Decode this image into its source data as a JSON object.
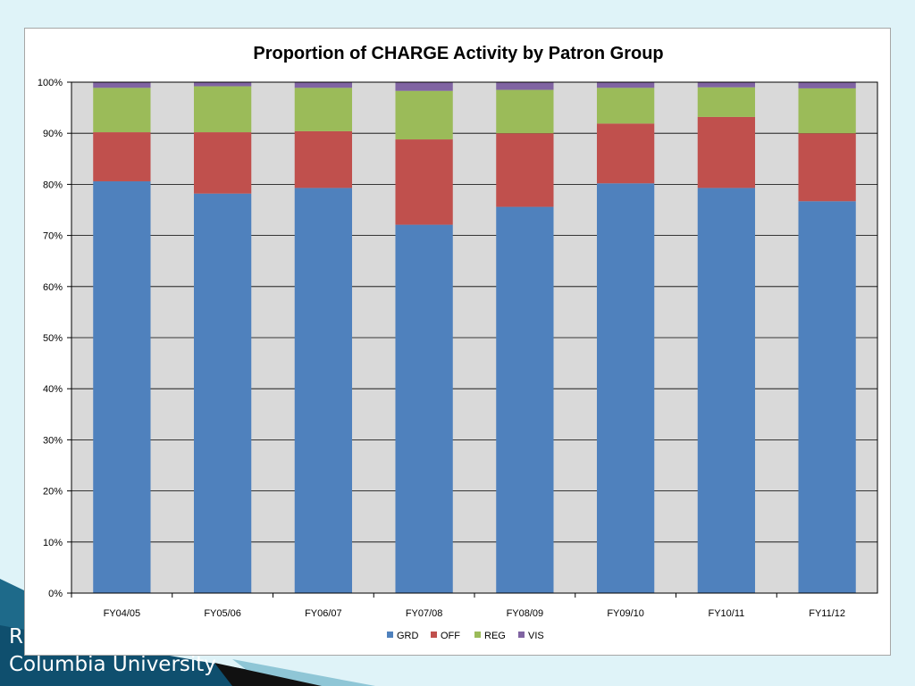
{
  "slide": {
    "footer_line1": "R",
    "footer_line2": "Columbia University"
  },
  "chart_data": {
    "type": "bar",
    "stacked": true,
    "percent": true,
    "title": "Proportion of CHARGE Activity by Patron Group",
    "xlabel": "",
    "ylabel": "",
    "ylim": [
      0,
      100
    ],
    "yticks": [
      "0%",
      "10%",
      "20%",
      "30%",
      "40%",
      "50%",
      "60%",
      "70%",
      "80%",
      "90%",
      "100%"
    ],
    "grid": true,
    "legend_position": "bottom",
    "categories": [
      "FY04/05",
      "FY05/06",
      "FY06/07",
      "FY07/08",
      "FY08/09",
      "FY09/10",
      "FY10/11",
      "FY11/12"
    ],
    "series": [
      {
        "name": "GRD",
        "color": "#4f81bd",
        "values": [
          80.6,
          78.2,
          79.3,
          72.1,
          75.6,
          80.2,
          79.3,
          76.7
        ]
      },
      {
        "name": "OFF",
        "color": "#c0504d",
        "values": [
          9.6,
          12.0,
          11.1,
          16.7,
          14.4,
          11.7,
          13.9,
          13.3
        ]
      },
      {
        "name": "REG",
        "color": "#9bbb59",
        "values": [
          8.7,
          9.0,
          8.5,
          9.5,
          8.5,
          7.0,
          5.8,
          8.8
        ]
      },
      {
        "name": "VIS",
        "color": "#8064a2",
        "values": [
          1.1,
          0.8,
          1.1,
          1.7,
          1.5,
          1.1,
          1.0,
          1.2
        ]
      }
    ]
  }
}
